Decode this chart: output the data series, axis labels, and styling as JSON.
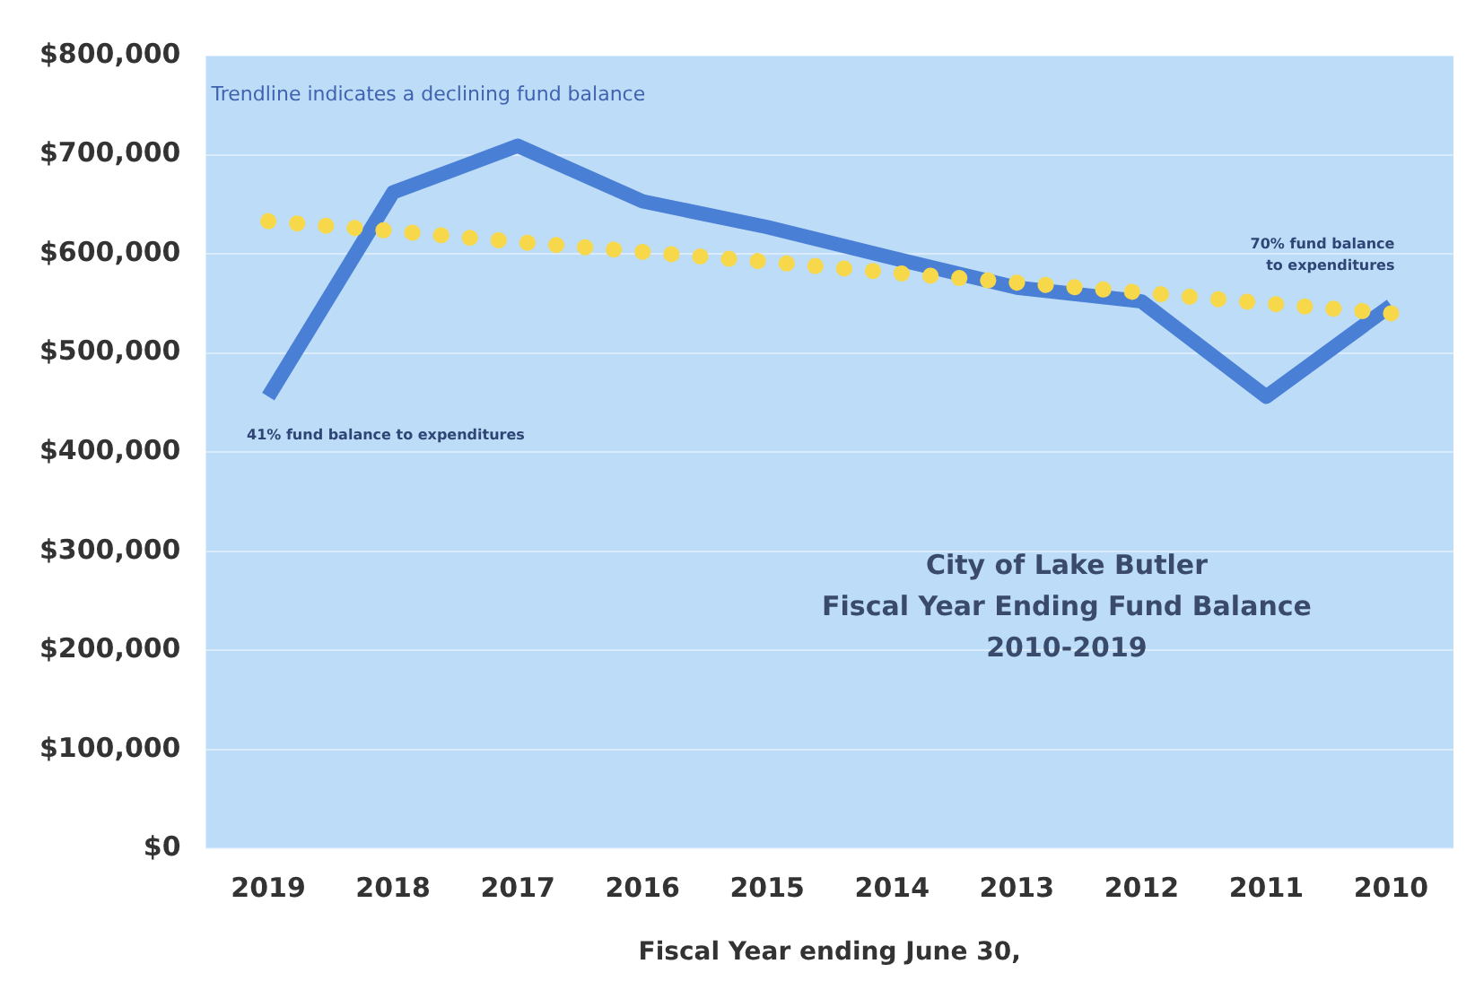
{
  "chart_data": {
    "type": "line",
    "title": "City of Lake Butler\nFiscal Year Ending Fund Balance\n2010-2019",
    "xlabel": "Fiscal Year ending June 30,",
    "categories": [
      "2019",
      "2018",
      "2017",
      "2016",
      "2015",
      "2014",
      "2013",
      "2012",
      "2011",
      "2010"
    ],
    "series": [
      {
        "color": "#4a7fd6",
        "values": [
          456000,
          662000,
          709000,
          653000,
          627000,
          596000,
          566000,
          552000,
          456000,
          548000
        ]
      },
      {
        "type": "line",
        "color": "#f7d84a",
        "line_style": "dotted",
        "values": [
          633000,
          623000,
          612000,
          602000,
          592000,
          581000,
          571000,
          561000,
          550000,
          540000
        ]
      }
    ],
    "ylim": [
      0,
      800000
    ],
    "yticks": [
      {
        "value": 0,
        "label": "$0"
      },
      {
        "value": 100000,
        "label": "$100,000"
      },
      {
        "value": 200000,
        "label": "$200,000"
      },
      {
        "value": 300000,
        "label": "$300,000"
      },
      {
        "value": 400000,
        "label": "$400,000"
      },
      {
        "value": 500000,
        "label": "$500,000"
      },
      {
        "value": 600000,
        "label": "$600,000"
      },
      {
        "value": 700000,
        "label": "$700,000"
      },
      {
        "value": 800000,
        "label": "$800,000"
      }
    ],
    "annotations": [
      "Trendline indicates a declining fund balance",
      {
        "text": "41% fund balance to expenditures",
        "x": "2019",
        "y": 456000
      },
      {
        "text": "70% fund balance to expenditures",
        "x": "2010",
        "y": 548000
      }
    ],
    "grid": "y",
    "legend": false,
    "marker": "none",
    "line_style": "solid"
  }
}
